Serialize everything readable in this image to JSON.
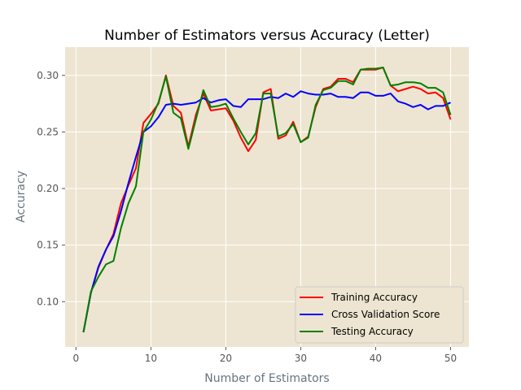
{
  "chart_data": {
    "type": "line",
    "title": "Number of Estimators versus Accuracy (Letter)",
    "xlabel": "Number of Estimators",
    "ylabel": "Accuracy",
    "xlim": [
      -1.45,
      52.45
    ],
    "ylim": [
      0.06,
      0.325
    ],
    "xticks": [
      0,
      10,
      20,
      30,
      40,
      50
    ],
    "xtick_labels": [
      "0",
      "10",
      "20",
      "30",
      "40",
      "50"
    ],
    "yticks": [
      0.1,
      0.15,
      0.2,
      0.25,
      0.3
    ],
    "ytick_labels": [
      "0.10",
      "0.15",
      "0.20",
      "0.25",
      "0.30"
    ],
    "grid": true,
    "legend_position": "lower-right",
    "x": [
      1,
      2,
      3,
      4,
      5,
      6,
      7,
      8,
      9,
      10,
      11,
      12,
      13,
      14,
      15,
      16,
      17,
      18,
      19,
      20,
      21,
      22,
      23,
      24,
      25,
      26,
      27,
      28,
      29,
      30,
      31,
      32,
      33,
      34,
      35,
      36,
      37,
      38,
      39,
      40,
      41,
      42,
      43,
      44,
      45,
      46,
      47,
      48,
      49,
      50
    ],
    "series": [
      {
        "name": "Training Accuracy",
        "color": "#ff0000",
        "values": [
          0.073,
          0.108,
          0.13,
          0.146,
          0.16,
          0.187,
          0.203,
          0.218,
          0.258,
          0.266,
          0.275,
          0.3,
          0.273,
          0.267,
          0.237,
          0.265,
          0.284,
          0.269,
          0.27,
          0.271,
          0.26,
          0.245,
          0.233,
          0.243,
          0.285,
          0.288,
          0.244,
          0.247,
          0.259,
          0.241,
          0.246,
          0.272,
          0.288,
          0.29,
          0.297,
          0.297,
          0.294,
          0.305,
          0.305,
          0.305,
          0.307,
          0.291,
          0.286,
          0.288,
          0.29,
          0.288,
          0.284,
          0.285,
          0.28,
          0.261
        ]
      },
      {
        "name": "Cross Validation Score",
        "color": "#0000ff",
        "values": [
          0.073,
          0.108,
          0.131,
          0.146,
          0.158,
          0.18,
          0.205,
          0.228,
          0.25,
          0.255,
          0.263,
          0.274,
          0.275,
          0.274,
          0.275,
          0.276,
          0.28,
          0.276,
          0.278,
          0.279,
          0.273,
          0.272,
          0.279,
          0.279,
          0.279,
          0.281,
          0.28,
          0.284,
          0.281,
          0.286,
          0.284,
          0.283,
          0.283,
          0.284,
          0.281,
          0.281,
          0.28,
          0.285,
          0.285,
          0.282,
          0.282,
          0.284,
          0.277,
          0.275,
          0.272,
          0.274,
          0.27,
          0.273,
          0.273,
          0.276
        ]
      },
      {
        "name": "Testing Accuracy",
        "color": "#008000",
        "values": [
          0.073,
          0.109,
          0.122,
          0.133,
          0.136,
          0.165,
          0.187,
          0.202,
          0.25,
          0.261,
          0.276,
          0.299,
          0.267,
          0.262,
          0.235,
          0.261,
          0.287,
          0.272,
          0.273,
          0.275,
          0.262,
          0.25,
          0.239,
          0.249,
          0.284,
          0.284,
          0.246,
          0.249,
          0.257,
          0.241,
          0.245,
          0.274,
          0.287,
          0.289,
          0.295,
          0.295,
          0.292,
          0.305,
          0.306,
          0.306,
          0.307,
          0.291,
          0.292,
          0.294,
          0.294,
          0.293,
          0.289,
          0.289,
          0.285,
          0.265
        ]
      }
    ]
  }
}
